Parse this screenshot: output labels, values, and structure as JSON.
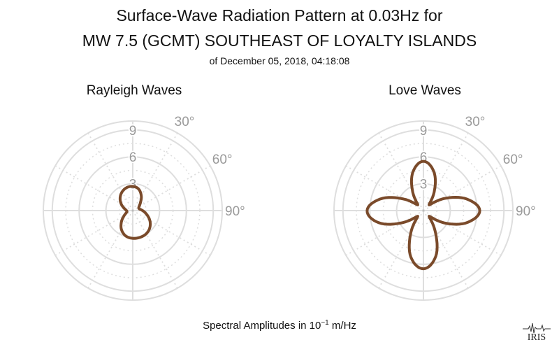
{
  "title_line1": "Surface-Wave Radiation Pattern at 0.03Hz for",
  "title_line2": "MW 7.5 (GCMT) SOUTHEAST OF LOYALTY ISLANDS",
  "subtitle": "of December 05, 2018, 04:18:08",
  "footer": {
    "prefix": "Spectral Amplitudes in ",
    "base": "10",
    "exponent": "−1",
    "unit": " m/Hz"
  },
  "logo_text": "IRIS",
  "colors": {
    "curve": "#7a4a2a",
    "grid": "#dedede",
    "label": "#9a9a9a"
  },
  "chart_data": [
    {
      "type": "polar-line",
      "title": "Rayleigh Waves",
      "r_ticks": [
        3,
        6,
        9
      ],
      "r_max": 10,
      "angle_ticks": [
        30,
        60,
        90
      ],
      "angle_labels": [
        "30°",
        "60°",
        "90°"
      ],
      "grid": true,
      "series": [
        {
          "amplitude_by_azimuth": {
            "azimuth_deg": [
              0,
              15,
              30,
              45,
              60,
              75,
              90,
              105,
              120,
              135,
              150,
              165,
              180,
              195,
              210,
              225,
              240,
              255,
              270,
              285,
              300,
              315,
              330,
              345
            ],
            "amplitude": [
              2.7,
              2.5,
              1.9,
              1.2,
              0.8,
              0.75,
              1.1,
              1.6,
              2.2,
              2.7,
              3.0,
              3.1,
              3.1,
              2.95,
              2.5,
              1.8,
              1.1,
              0.7,
              0.7,
              1.0,
              1.5,
              2.0,
              2.4,
              2.65
            ]
          }
        }
      ]
    },
    {
      "type": "polar-line",
      "title": "Love Waves",
      "r_ticks": [
        3,
        6,
        9
      ],
      "r_max": 10,
      "angle_ticks": [
        30,
        60,
        90
      ],
      "angle_labels": [
        "30°",
        "60°",
        "90°"
      ],
      "grid": true,
      "series": [
        {
          "amplitude_by_azimuth": {
            "azimuth_deg": [
              0,
              15,
              30,
              45,
              60,
              75,
              90,
              105,
              120,
              135,
              150,
              165,
              180,
              195,
              210,
              225,
              240,
              255,
              270,
              285,
              300,
              315,
              330,
              345
            ],
            "amplitude": [
              5.5,
              4.5,
              2.4,
              0.9,
              2.7,
              5.0,
              6.3,
              5.1,
              2.8,
              0.9,
              2.6,
              5.3,
              6.5,
              5.4,
              2.8,
              0.9,
              2.7,
              5.2,
              6.3,
              5.0,
              2.6,
              0.9,
              2.4,
              4.5
            ]
          }
        }
      ]
    }
  ]
}
